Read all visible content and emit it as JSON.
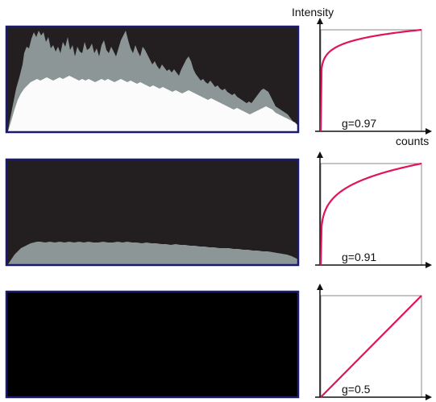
{
  "labels": {
    "y_axis": "Intensity",
    "x_axis": "counts"
  },
  "panels": [
    {
      "gamma_label": "g=0.97",
      "gamma": 0.1
    },
    {
      "gamma_label": "g=0.91",
      "gamma": 0.2
    },
    {
      "gamma_label": "g=0.5",
      "gamma": 1.0
    }
  ],
  "colors": {
    "curve": "#e0145a",
    "frame": "#1c1a6e",
    "dark_background": "#231f20",
    "black_background": "#000000",
    "histogram_light": "#fbfbfb",
    "histogram_gray": "#8d9696"
  }
}
